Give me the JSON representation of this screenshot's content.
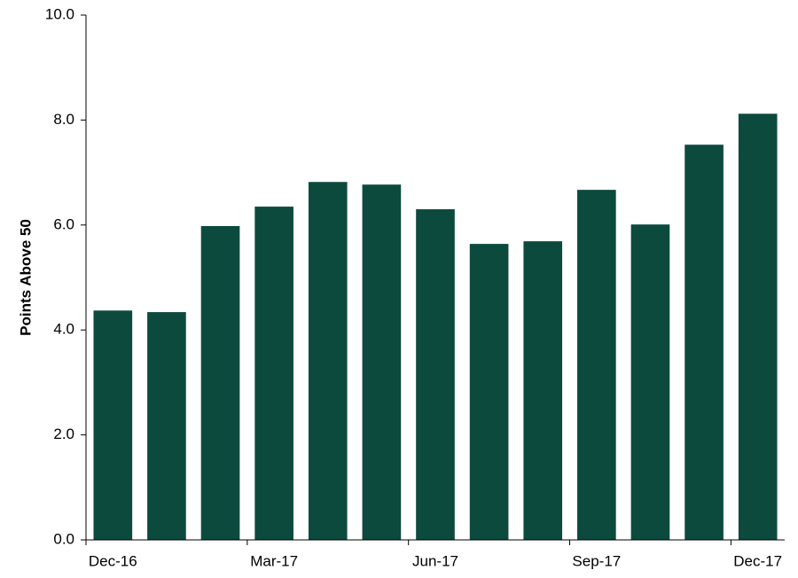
{
  "chart_data": {
    "type": "bar",
    "y_label": "Points Above 50",
    "categories": [
      "Dec-16",
      null,
      null,
      "Mar-17",
      null,
      null,
      "Jun-17",
      null,
      null,
      "Sep-17",
      null,
      null,
      "Dec-17"
    ],
    "values": [
      4.37,
      4.34,
      5.98,
      6.35,
      6.82,
      6.77,
      6.3,
      5.64,
      5.69,
      6.67,
      6.01,
      7.53,
      8.12
    ],
    "color": "#0d4a3e",
    "ylim": [
      0,
      10
    ],
    "yticks": [
      {
        "value": 0,
        "label": "0.0"
      },
      {
        "value": 2,
        "label": "2.0"
      },
      {
        "value": 4,
        "label": "4.0"
      },
      {
        "value": 6,
        "label": "6.0"
      },
      {
        "value": 8,
        "label": "8.0"
      },
      {
        "value": 10,
        "label": "10.0"
      }
    ],
    "grid": false
  }
}
